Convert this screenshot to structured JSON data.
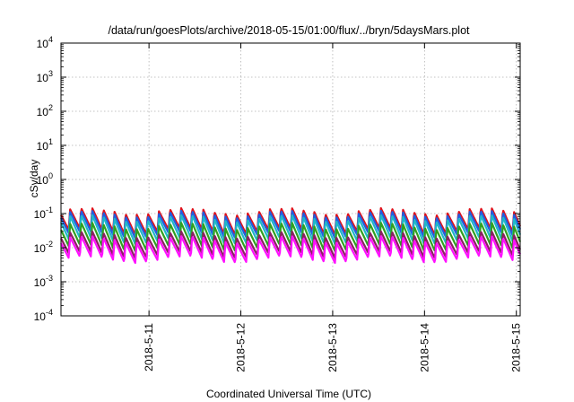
{
  "chart_data": {
    "type": "line",
    "title": "/data/run/goesPlots/archive/2018-05-15/01:00/flux/../bryn/5daysMars.plot",
    "xlabel": "Coordinated Universal Time (UTC)",
    "ylabel": "cSv/day",
    "yscale": "log",
    "ylim": [
      0.0001,
      10000
    ],
    "y_ticks": [
      {
        "base": "10",
        "exp": "4"
      },
      {
        "base": "10",
        "exp": "3"
      },
      {
        "base": "10",
        "exp": "2"
      },
      {
        "base": "10",
        "exp": "1"
      },
      {
        "base": "10",
        "exp": "0"
      },
      {
        "base": "10",
        "exp": "-1"
      },
      {
        "base": "10",
        "exp": "-2"
      },
      {
        "base": "10",
        "exp": "-3"
      },
      {
        "base": "10",
        "exp": "-4"
      }
    ],
    "xlim": [
      "2018-05-10 01:00",
      "2018-05-15 01:00"
    ],
    "x_ticks": [
      "2018-5-11",
      "2018-5-12",
      "2018-5-13",
      "2018-5-14",
      "2018-5-15"
    ],
    "grid": true,
    "pattern": "sawtooth, period about 2.9 hours",
    "series": [
      {
        "color": "#e0101a",
        "peak": 0.12,
        "trough": 0.03
      },
      {
        "color": "#2060e0",
        "peak": 0.1,
        "trough": 0.024
      },
      {
        "color": "#20b8c8",
        "peak": 0.075,
        "trough": 0.016
      },
      {
        "color": "#30a020",
        "peak": 0.045,
        "trough": 0.01
      },
      {
        "color": "#8a2060",
        "peak": 0.025,
        "trough": 0.0062
      },
      {
        "color": "#ff10ff",
        "peak": 0.018,
        "trough": 0.0045
      }
    ]
  }
}
